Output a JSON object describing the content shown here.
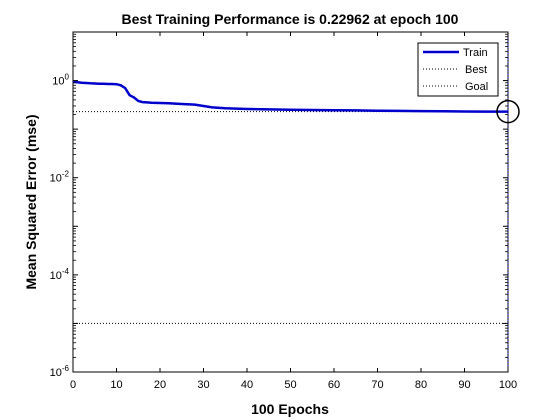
{
  "chart_data": {
    "type": "line",
    "title": "Best Training Performance is 0.22962 at epoch 100",
    "xlabel": "100 Epochs",
    "ylabel": "Mean Squared Error  (mse)",
    "xlim": [
      0,
      100
    ],
    "ylim": [
      1e-06,
      10
    ],
    "yscale": "log",
    "grid": false,
    "legend_position": "top-right",
    "x_ticks": [
      0,
      10,
      20,
      30,
      40,
      50,
      60,
      70,
      80,
      90,
      100
    ],
    "x_tick_labels": [
      "0",
      "10",
      "20",
      "30",
      "40",
      "50",
      "60",
      "70",
      "80",
      "90",
      "100"
    ],
    "y_ticks": [
      {
        "value": 1,
        "base": "10",
        "exp": "0"
      },
      {
        "value": 0.01,
        "base": "10",
        "exp": "-2"
      },
      {
        "value": 0.0001,
        "base": "10",
        "exp": "-4"
      },
      {
        "value": 1e-06,
        "base": "10",
        "exp": "-6"
      }
    ],
    "series": [
      {
        "name": "Train",
        "color": "#0000cc",
        "style": "solid",
        "x": [
          0,
          1,
          2,
          3,
          4,
          5,
          6,
          7,
          8,
          9,
          10,
          11,
          12,
          13,
          14,
          15,
          16,
          17,
          18,
          20,
          22,
          25,
          28,
          30,
          32,
          35,
          40,
          45,
          50,
          55,
          60,
          65,
          70,
          75,
          80,
          85,
          90,
          95,
          100
        ],
        "y": [
          0.95,
          0.92,
          0.9,
          0.89,
          0.88,
          0.87,
          0.86,
          0.86,
          0.85,
          0.85,
          0.84,
          0.8,
          0.7,
          0.5,
          0.45,
          0.38,
          0.36,
          0.355,
          0.35,
          0.345,
          0.34,
          0.33,
          0.32,
          0.3,
          0.28,
          0.27,
          0.26,
          0.255,
          0.25,
          0.248,
          0.245,
          0.243,
          0.24,
          0.238,
          0.235,
          0.233,
          0.231,
          0.23,
          0.22962
        ]
      },
      {
        "name": "Best",
        "color": "#000000",
        "style": "dotted",
        "best_epoch": 100,
        "best_value": 0.22962
      },
      {
        "name": "Goal",
        "color": "#000000",
        "style": "dotted",
        "value": 1e-05
      }
    ]
  }
}
